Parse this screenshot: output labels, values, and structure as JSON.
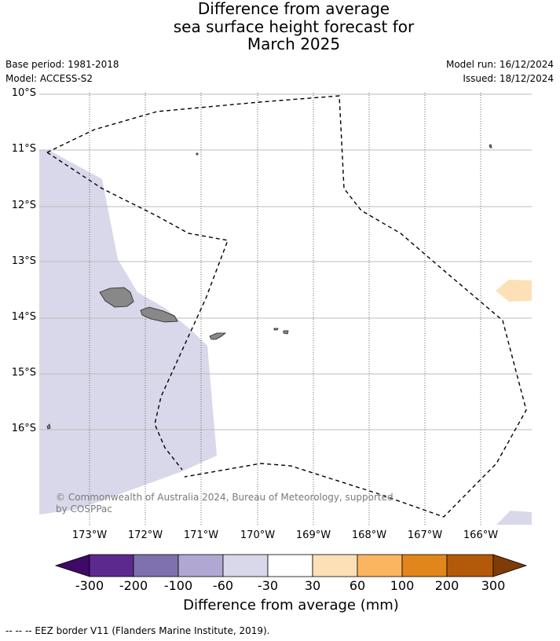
{
  "title_lines": [
    "Difference from average",
    "sea surface height forecast for",
    "March 2025"
  ],
  "meta": {
    "base_period": "Base period: 1981-2018",
    "model": "Model: ACCESS-S2",
    "model_run": "Model run: 16/12/2024",
    "issued": "Issued: 18/12/2024"
  },
  "axes": {
    "latitudes": [
      "10°S",
      "11°S",
      "12°S",
      "13°S",
      "14°S",
      "15°S",
      "16°S"
    ],
    "longitudes": [
      "173°W",
      "172°W",
      "171°W",
      "170°W",
      "169°W",
      "168°W",
      "167°W",
      "166°W"
    ]
  },
  "copyright": [
    "© Commonwealth of Australia 2024, Bureau of Meteorology, supported",
    "by COSPPac"
  ],
  "colorbar": {
    "ticks": [
      "-300",
      "-200",
      "-100",
      "-60",
      "-30",
      "30",
      "60",
      "100",
      "200",
      "300"
    ],
    "colors": [
      "#3f0a66",
      "#5c2a8f",
      "#7f71ae",
      "#b0a8d3",
      "#d8d8ea",
      "#ffffff",
      "#fde0b6",
      "#fbb560",
      "#e1861a",
      "#b3590a",
      "#7f3b08"
    ],
    "label": "Difference from average (mm)"
  },
  "footnote": "--  --  -- EEZ border V11 (Flanders Marine Institute, 2019)."
}
